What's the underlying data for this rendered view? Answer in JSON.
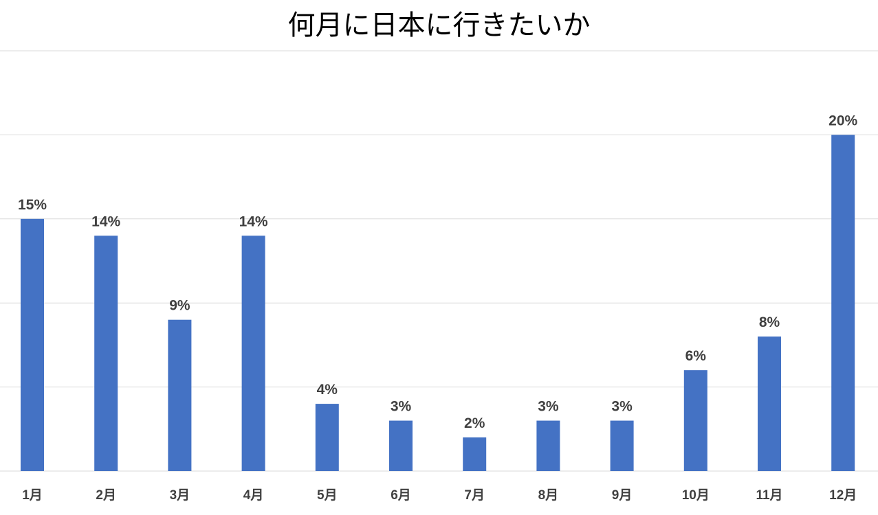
{
  "chart_data": {
    "type": "bar",
    "title": "何月に日本に行きたいか",
    "categories": [
      "1月",
      "2月",
      "3月",
      "4月",
      "5月",
      "6月",
      "7月",
      "8月",
      "9月",
      "10月",
      "11月",
      "12月"
    ],
    "values": [
      15,
      14,
      9,
      14,
      4,
      3,
      2,
      3,
      3,
      6,
      8,
      20
    ],
    "data_labels": [
      "15%",
      "14%",
      "9%",
      "14%",
      "4%",
      "3%",
      "2%",
      "3%",
      "3%",
      "6%",
      "8%",
      "20%"
    ],
    "value_unit": "%",
    "ylim": [
      0,
      25
    ],
    "y_gridlines": [
      0,
      5,
      10,
      15,
      20,
      25
    ],
    "grid": true,
    "show_y_axis_labels": false,
    "legend": "none",
    "bar_color": "#4472C4",
    "gridline_color": "#d9d9d9"
  }
}
